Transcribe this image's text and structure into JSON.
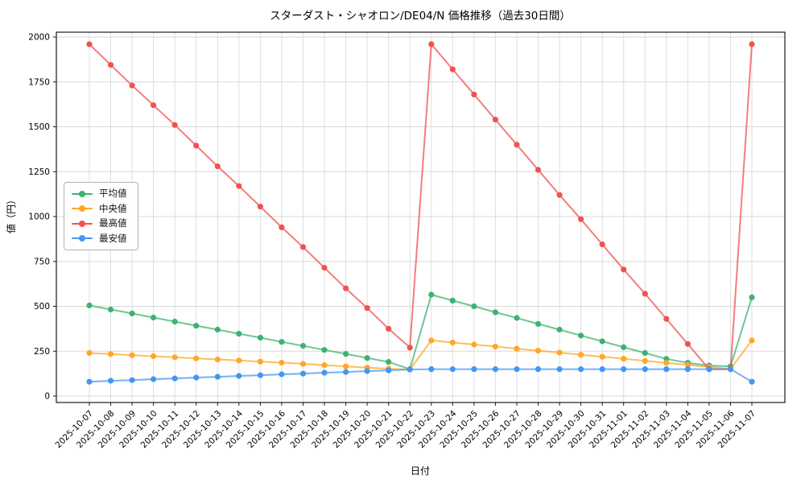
{
  "chart_data": {
    "type": "line",
    "title": "スターダスト・シャオロン/DE04/N 価格推移（過去30日間）",
    "xlabel": "日付",
    "ylabel": "値（円）",
    "ylim": [
      0,
      2000
    ],
    "yticks": [
      0,
      250,
      500,
      750,
      1000,
      1250,
      1500,
      1750,
      2000
    ],
    "grid": true,
    "legend_position": "center-left",
    "categories": [
      "2025-10-07",
      "2025-10-08",
      "2025-10-09",
      "2025-10-10",
      "2025-10-11",
      "2025-10-12",
      "2025-10-13",
      "2025-10-14",
      "2025-10-15",
      "2025-10-16",
      "2025-10-17",
      "2025-10-18",
      "2025-10-19",
      "2025-10-20",
      "2025-10-21",
      "2025-10-22",
      "2025-10-23",
      "2025-10-24",
      "2025-10-25",
      "2025-10-26",
      "2025-10-27",
      "2025-10-28",
      "2025-10-29",
      "2025-10-30",
      "2025-10-31",
      "2025-11-01",
      "2025-11-02",
      "2025-11-03",
      "2025-11-04",
      "2025-11-05",
      "2025-11-06",
      "2025-11-07"
    ],
    "series": [
      {
        "name": "平均値",
        "color": "#3cb371",
        "values": [
          505,
          482,
          460,
          437,
          415,
          392,
          370,
          347,
          325,
          302,
          280,
          257,
          235,
          212,
          190,
          150,
          565,
          532,
          500,
          467,
          435,
          402,
          370,
          337,
          305,
          272,
          240,
          207,
          185,
          170,
          165,
          550
        ]
      },
      {
        "name": "中央値",
        "color": "#ffa726",
        "values": [
          240,
          234,
          228,
          222,
          216,
          210,
          204,
          198,
          192,
          186,
          180,
          172,
          165,
          158,
          152,
          148,
          310,
          298,
          287,
          276,
          264,
          253,
          242,
          230,
          219,
          208,
          196,
          185,
          174,
          162,
          151,
          310
        ]
      },
      {
        "name": "最高値",
        "color": "#ef5350",
        "values": [
          1960,
          1845,
          1730,
          1620,
          1510,
          1395,
          1280,
          1170,
          1055,
          940,
          830,
          715,
          600,
          490,
          375,
          270,
          1960,
          1820,
          1680,
          1540,
          1400,
          1260,
          1120,
          985,
          845,
          705,
          570,
          430,
          290,
          150,
          150,
          1960
        ]
      },
      {
        "name": "最安値",
        "color": "#4596f0",
        "values": [
          80,
          85,
          89,
          94,
          98,
          103,
          107,
          112,
          116,
          121,
          125,
          130,
          134,
          139,
          143,
          148,
          150,
          150,
          150,
          150,
          150,
          150,
          150,
          150,
          150,
          150,
          150,
          150,
          150,
          150,
          150,
          80
        ]
      }
    ]
  }
}
